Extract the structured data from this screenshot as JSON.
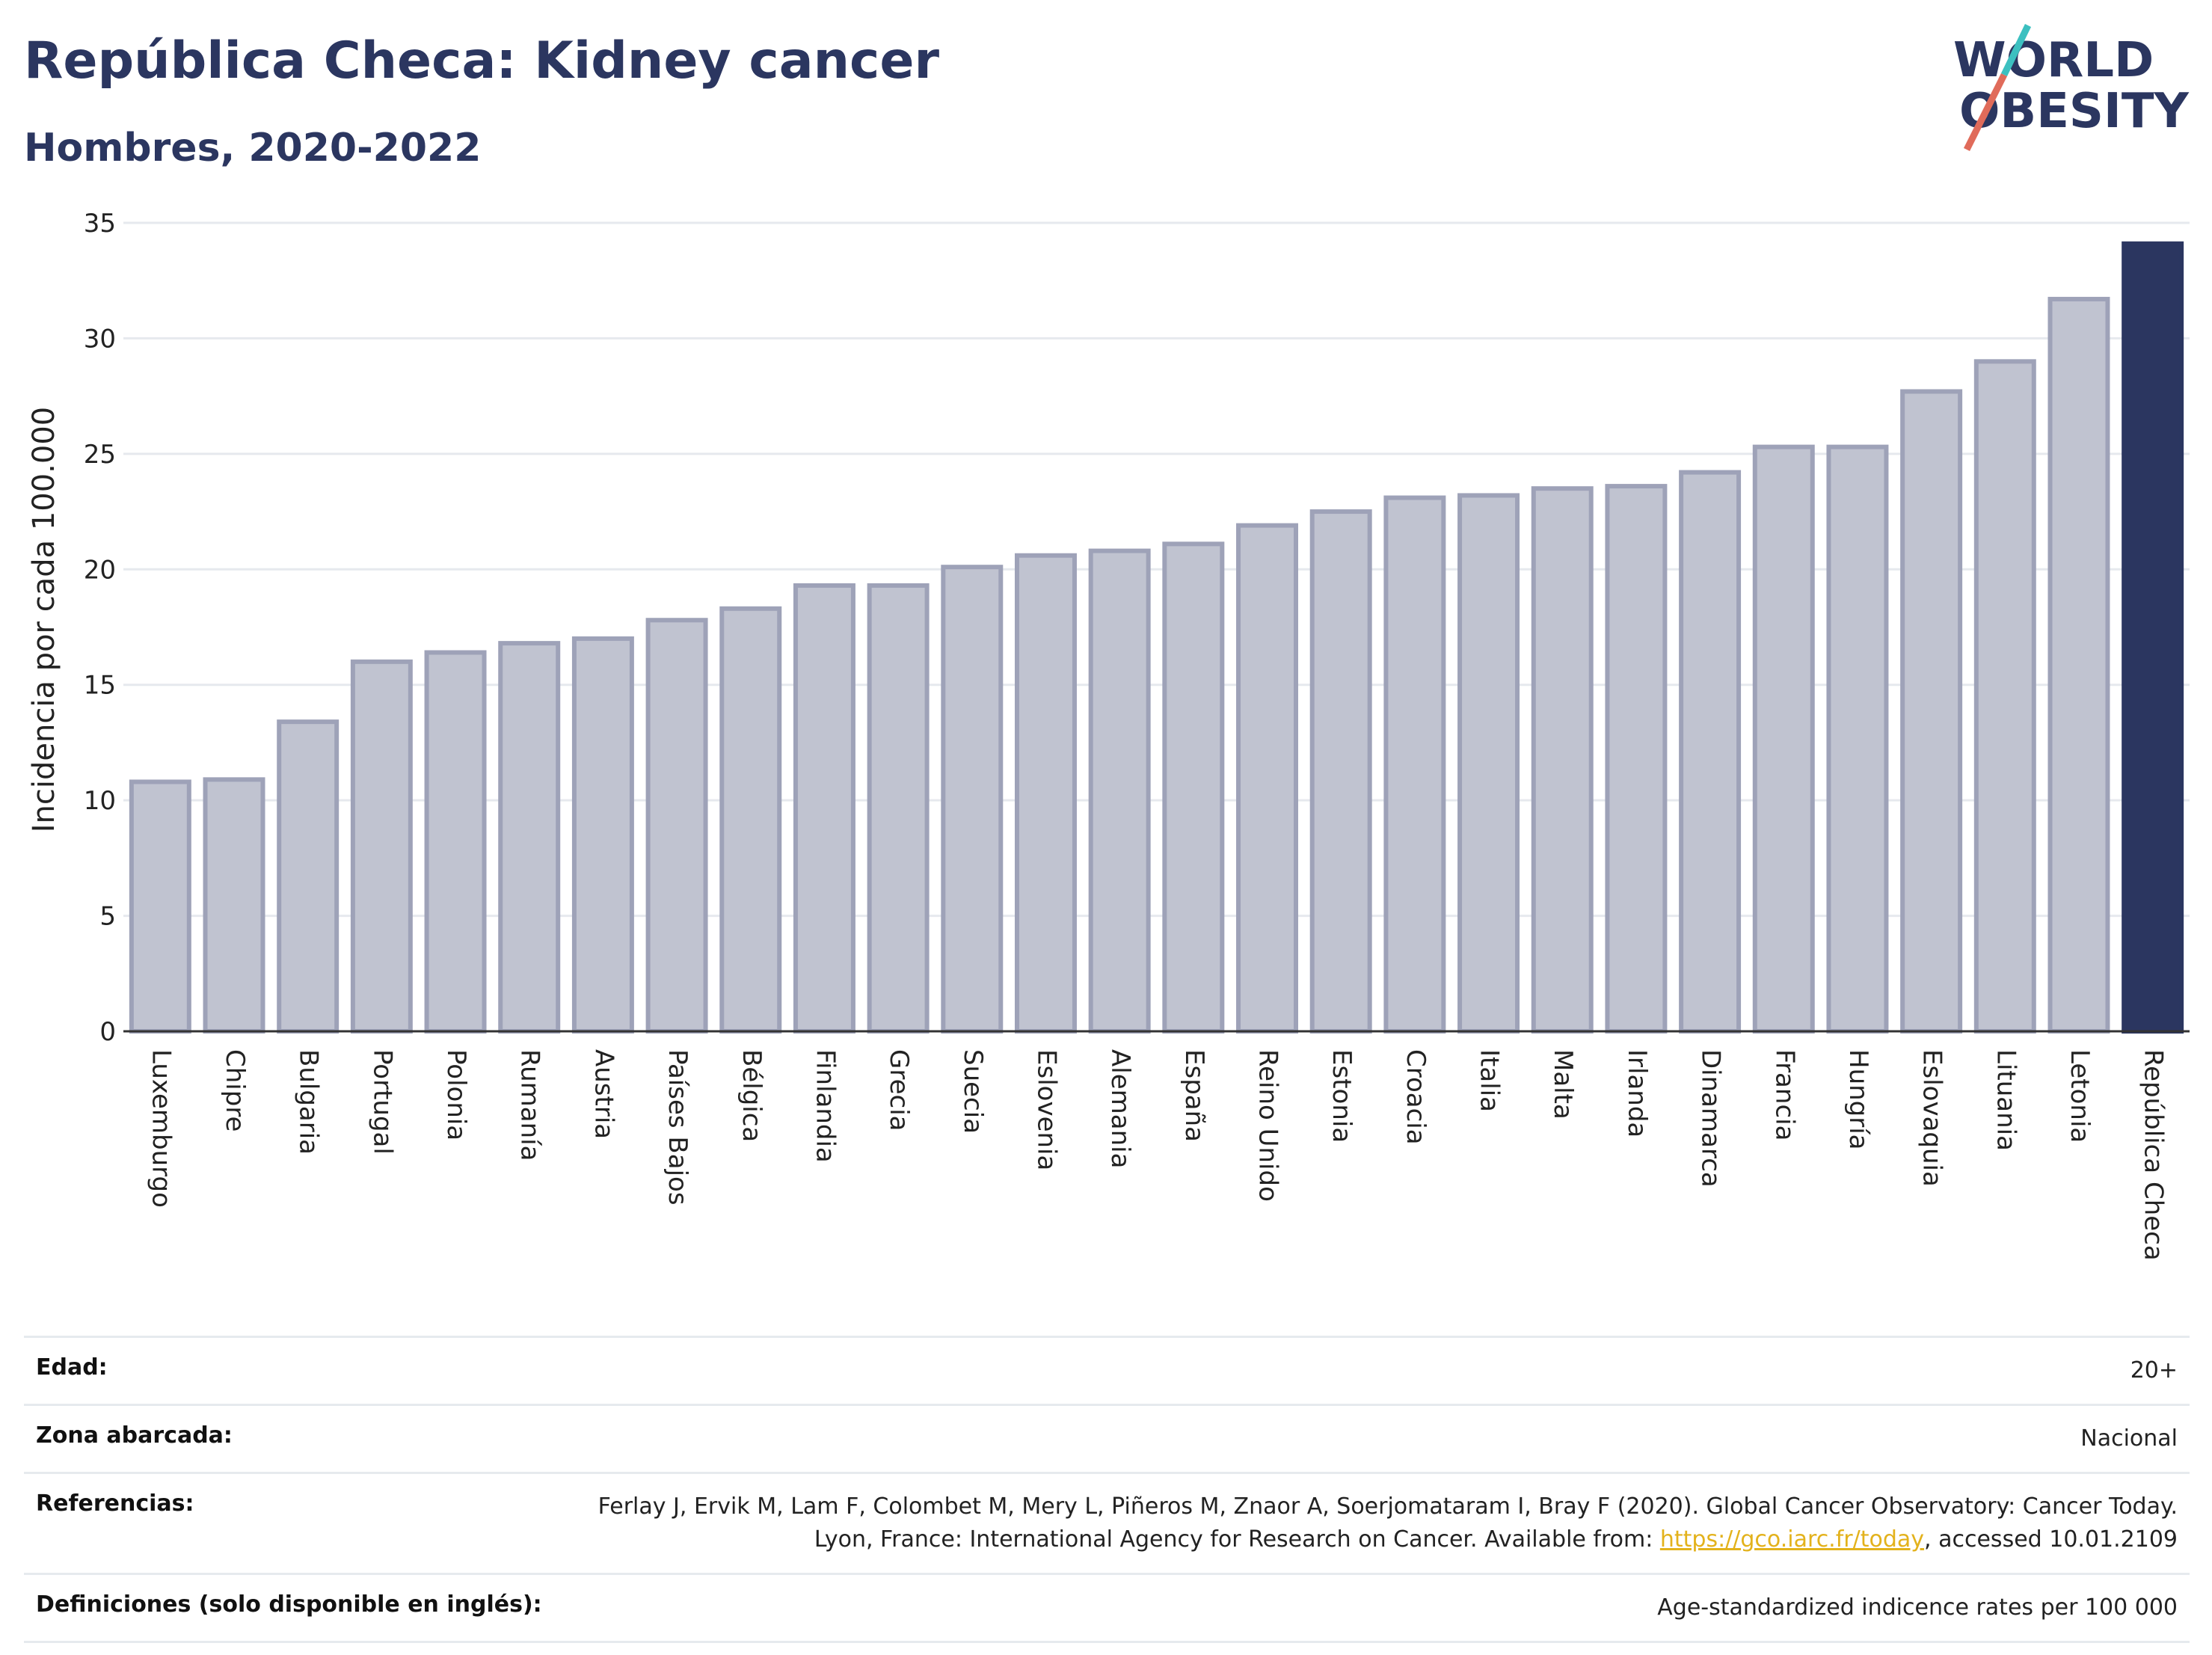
{
  "header": {
    "title": "República Checa: Kidney cancer",
    "subtitle": "Hombres, 2020-2022"
  },
  "logo": {
    "line1": "WORLD",
    "line2": "OBESITY"
  },
  "chart_data": {
    "type": "bar",
    "ylabel": "Incidencia por cada 100.000",
    "ylim": [
      0,
      35
    ],
    "yticks": [
      "0",
      "5",
      "10",
      "15",
      "20",
      "25",
      "30",
      "35"
    ],
    "categories": [
      "Luxemburgo",
      "Chipre",
      "Bulgaria",
      "Portugal",
      "Polonia",
      "Rumanía",
      "Austria",
      "Países Bajos",
      "Bélgica",
      "Finlandia",
      "Grecia",
      "Suecia",
      "Eslovenia",
      "Alemania",
      "España",
      "Reino Unido",
      "Estonia",
      "Croacia",
      "Italia",
      "Malta",
      "Irlanda",
      "Dinamarca",
      "Francia",
      "Hungría",
      "Eslovaquia",
      "Lituania",
      "Letonia",
      "República Checa"
    ],
    "values": [
      10.8,
      10.9,
      13.4,
      16.0,
      16.4,
      16.8,
      17.0,
      17.8,
      18.3,
      19.3,
      19.3,
      20.1,
      20.6,
      20.8,
      21.1,
      21.9,
      22.5,
      23.1,
      23.2,
      23.5,
      23.6,
      24.2,
      25.3,
      25.3,
      27.7,
      29.0,
      31.7,
      34.1
    ],
    "highlight": "República Checa",
    "grid": true,
    "colors": {
      "bar": "#c0c3d0",
      "bar_border": "#9ea2b8",
      "highlight": "#2b3660",
      "grid": "#e6e9ee"
    }
  },
  "info": [
    {
      "key": "Edad:",
      "value": "20+"
    },
    {
      "key": "Zona abarcada:",
      "value": "Nacional"
    },
    {
      "key": "Referencias:",
      "value_pre": "Ferlay J, Ervik M, Lam F, Colombet M, Mery L, Piñeros M, Znaor A, Soerjomataram I, Bray F (2020). Global Cancer Observatory: Cancer Today. Lyon, France: International Agency for Research on Cancer. Available from: ",
      "link": "https://gco.iarc.fr/today",
      "value_post": ", accessed 10.01.2109"
    },
    {
      "key": "Definiciones (solo disponible en inglés):",
      "value": "Age-standardized indicence rates per 100 000"
    }
  ]
}
